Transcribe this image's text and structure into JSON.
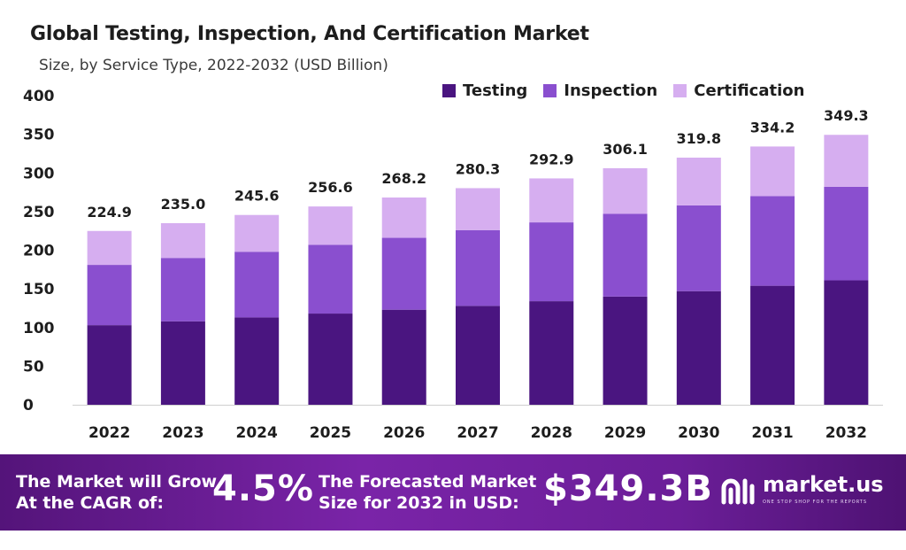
{
  "chart_data": {
    "type": "bar",
    "stacked": true,
    "title": "Global Testing, Inspection, And Certification Market",
    "subtitle": "Size, by Service Type, 2022-2032 (USD Billion)",
    "categories": [
      "2022",
      "2023",
      "2024",
      "2025",
      "2026",
      "2027",
      "2028",
      "2029",
      "2030",
      "2031",
      "2032"
    ],
    "series": [
      {
        "name": "Testing",
        "color": "#4a1580",
        "values": [
          103,
          108,
          113,
          118,
          123,
          128,
          134,
          140,
          147,
          154,
          161
        ]
      },
      {
        "name": "Inspection",
        "color": "#8a4fcf",
        "values": [
          78,
          82,
          85,
          89,
          93,
          98,
          102,
          107,
          111,
          116,
          121
        ]
      },
      {
        "name": "Certification",
        "color": "#d6aef0",
        "values": [
          43.9,
          45.0,
          47.6,
          49.6,
          52.2,
          54.3,
          56.9,
          59.1,
          61.8,
          64.2,
          67.3
        ]
      }
    ],
    "totals": [
      "224.9",
      "235.0",
      "245.6",
      "256.6",
      "268.2",
      "280.3",
      "292.9",
      "306.1",
      "319.8",
      "334.2",
      "349.3"
    ],
    "y_ticks": [
      "0",
      "50",
      "100",
      "150",
      "200",
      "250",
      "300",
      "350",
      "400"
    ],
    "ylim": [
      0,
      400
    ],
    "legend_position": "top-right",
    "grid": false
  },
  "banner": {
    "cagr_text_line1": "The Market will Grow",
    "cagr_text_line2": "At the CAGR of:",
    "cagr_value": "4.5%",
    "forecast_text_line1": "The Forecasted Market",
    "forecast_text_line2": "Size for 2032 in USD:",
    "forecast_value": "$349.3B",
    "brand_name": "market.us",
    "brand_tagline": "ONE STOP SHOP FOR THE REPORTS"
  }
}
